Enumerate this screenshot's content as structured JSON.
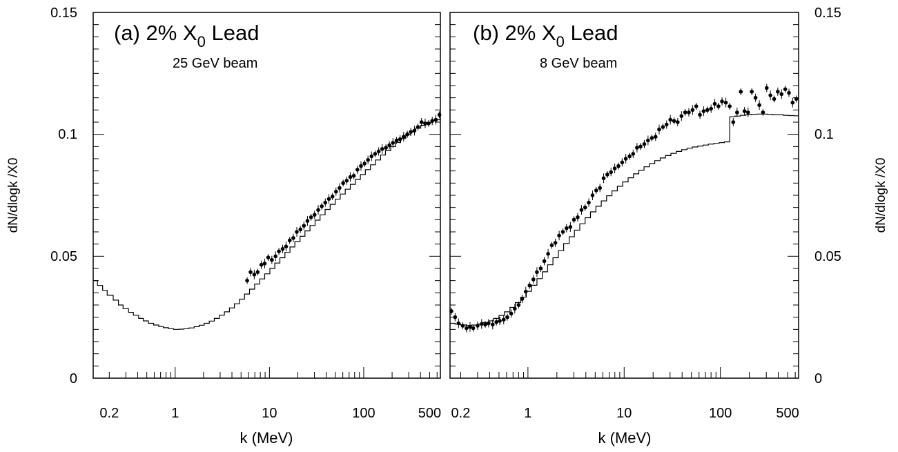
{
  "chart_data": [
    {
      "type": "scatter",
      "title": "(a) 2% X",
      "title_sub": "0",
      "title_suffix": " Lead",
      "subtitle": "25 GeV beam",
      "xlabel": "k (MeV)",
      "ylabel": "",
      "xscale": "log",
      "xlim": [
        0.135,
        650
      ],
      "ylim": [
        0,
        0.15
      ],
      "x_tick_labels": [
        "0.2",
        "1",
        "10",
        "100",
        "500"
      ],
      "y_tick_labels": [
        "0",
        "0.05",
        "0.1",
        "0.15"
      ],
      "series": [
        {
          "kind": "histogram",
          "x": [
            0.135,
            0.15,
            0.17,
            0.19,
            0.22,
            0.25,
            0.28,
            0.32,
            0.36,
            0.41,
            0.46,
            0.52,
            0.59,
            0.67,
            0.75,
            0.85,
            0.96,
            1.1,
            1.24,
            1.4,
            1.59,
            1.8,
            2.03,
            2.3,
            2.6,
            2.94,
            3.33,
            3.76,
            4.25,
            4.81,
            5.44,
            6.15,
            6.96,
            7.87,
            8.9,
            10.1,
            11.4,
            12.9,
            14.6,
            16.5,
            18.6,
            21.1,
            23.8,
            26.9,
            30.5,
            34.4,
            38.9,
            44,
            49.8,
            56.3,
            63.7,
            72,
            81.4,
            92.1,
            104,
            118,
            133,
            151,
            170,
            193,
            218,
            246,
            279,
            315,
            356,
            403,
            456,
            515,
            583,
            650
          ],
          "y": [
            0.04,
            0.038,
            0.036,
            0.034,
            0.032,
            0.03,
            0.0285,
            0.027,
            0.0258,
            0.0245,
            0.0235,
            0.0225,
            0.0218,
            0.0212,
            0.0207,
            0.0203,
            0.02,
            0.0201,
            0.0203,
            0.0206,
            0.0211,
            0.0217,
            0.0225,
            0.0234,
            0.0245,
            0.0258,
            0.0272,
            0.0288,
            0.0305,
            0.0324,
            0.0345,
            0.0365,
            0.0386,
            0.0407,
            0.0428,
            0.045,
            0.0472,
            0.0494,
            0.0516,
            0.0538,
            0.056,
            0.0582,
            0.0604,
            0.0626,
            0.0648,
            0.067,
            0.0692,
            0.0713,
            0.0734,
            0.0755,
            0.0775,
            0.0795,
            0.0815,
            0.0835,
            0.0855,
            0.0875,
            0.0895,
            0.0915,
            0.0933,
            0.095,
            0.0967,
            0.0983,
            0.0998,
            0.1012,
            0.1025,
            0.1037,
            0.1047,
            0.1055,
            0.106,
            0.1065
          ]
        },
        {
          "kind": "points",
          "x": [
            5.8,
            6.3,
            6.9,
            7.5,
            8.2,
            8.9,
            9.7,
            10.6,
            11.6,
            12.6,
            13.8,
            15.0,
            16.4,
            17.9,
            19.5,
            21.3,
            23.2,
            25.3,
            27.6,
            30.1,
            32.9,
            35.9,
            39.1,
            42.7,
            46.6,
            50.8,
            55.4,
            60.5,
            66.0,
            72.0,
            78.5,
            85.7,
            93.5,
            102,
            111,
            121,
            132,
            144,
            157,
            172,
            187,
            204,
            223,
            243,
            265,
            290,
            316,
            345,
            376,
            410,
            448,
            488,
            533,
            582,
            635
          ],
          "y": [
            0.04,
            0.0435,
            0.0425,
            0.0435,
            0.0465,
            0.047,
            0.0495,
            0.0485,
            0.05,
            0.052,
            0.053,
            0.054,
            0.0565,
            0.0575,
            0.06,
            0.061,
            0.0625,
            0.0645,
            0.066,
            0.067,
            0.069,
            0.0705,
            0.072,
            0.0735,
            0.0745,
            0.0765,
            0.078,
            0.08,
            0.081,
            0.0825,
            0.083,
            0.0855,
            0.087,
            0.088,
            0.0895,
            0.091,
            0.092,
            0.093,
            0.094,
            0.0945,
            0.0955,
            0.0965,
            0.0975,
            0.098,
            0.099,
            0.1,
            0.101,
            0.1015,
            0.103,
            0.105,
            0.1045,
            0.1045,
            0.1055,
            0.106,
            0.108
          ]
        }
      ]
    },
    {
      "type": "scatter",
      "title": "(b) 2% X",
      "title_sub": "0",
      "title_suffix": " Lead",
      "subtitle": "8 GeV beam",
      "xlabel": "k (MeV)",
      "ylabel": "dN/dlogk /X0",
      "xscale": "log",
      "xlim": [
        0.155,
        650
      ],
      "ylim": [
        0,
        0.15
      ],
      "x_tick_labels": [
        "0.2",
        "1",
        "10",
        "100",
        "500"
      ],
      "y_tick_labels": [
        "0",
        "0.05",
        "0.1",
        "0.15"
      ],
      "series": [
        {
          "kind": "histogram",
          "x": [
            0.155,
            0.175,
            0.2,
            0.23,
            0.26,
            0.3,
            0.34,
            0.39,
            0.44,
            0.5,
            0.57,
            0.65,
            0.74,
            0.84,
            0.96,
            1.09,
            1.24,
            1.41,
            1.6,
            1.82,
            2.07,
            2.35,
            2.68,
            3.04,
            3.46,
            3.93,
            4.47,
            5.08,
            5.78,
            6.57,
            7.47,
            8.49,
            9.65,
            11,
            12.5,
            14.2,
            16.1,
            18.3,
            20.8,
            23.7,
            26.9,
            30.6,
            34.8,
            39.6,
            45,
            51.1,
            58.1,
            66.1,
            75.1,
            85.4,
            97.1,
            110,
            125,
            142,
            162,
            184,
            209,
            238,
            270,
            307,
            349,
            397,
            451,
            513,
            583,
            650
          ],
          "y": [
            0.0225,
            0.0222,
            0.0218,
            0.0216,
            0.0218,
            0.0222,
            0.0228,
            0.0235,
            0.0245,
            0.0257,
            0.0272,
            0.029,
            0.031,
            0.0332,
            0.0356,
            0.0381,
            0.0408,
            0.0436,
            0.0465,
            0.0494,
            0.0523,
            0.0552,
            0.058,
            0.0607,
            0.0633,
            0.0658,
            0.0682,
            0.0705,
            0.0727,
            0.0748,
            0.0768,
            0.0787,
            0.0805,
            0.0822,
            0.0838,
            0.0853,
            0.0867,
            0.088,
            0.0892,
            0.0903,
            0.0913,
            0.0922,
            0.093,
            0.0937,
            0.0943,
            0.0948,
            0.0952,
            0.0956,
            0.096,
            0.0963,
            0.0966,
            0.0969,
            0.1072,
            0.1075,
            0.1078,
            0.108,
            0.1082,
            0.1083,
            0.1083,
            0.1082,
            0.108,
            0.108,
            0.1078,
            0.1077,
            0.1076,
            0.1075
          ]
        },
        {
          "kind": "points",
          "x": [
            0.16,
            0.175,
            0.19,
            0.21,
            0.23,
            0.25,
            0.27,
            0.3,
            0.33,
            0.36,
            0.39,
            0.43,
            0.47,
            0.51,
            0.56,
            0.61,
            0.67,
            0.73,
            0.8,
            0.87,
            0.95,
            1.04,
            1.14,
            1.24,
            1.36,
            1.48,
            1.62,
            1.77,
            1.93,
            2.11,
            2.31,
            2.52,
            2.76,
            3.01,
            3.29,
            3.6,
            3.93,
            4.29,
            4.69,
            5.12,
            5.6,
            6.12,
            6.68,
            7.3,
            7.98,
            8.72,
            9.53,
            10.4,
            11.4,
            12.4,
            13.6,
            14.8,
            16.2,
            17.7,
            19.4,
            21.2,
            23.1,
            25.3,
            27.6,
            30.2,
            33,
            36,
            39.4,
            43,
            47,
            51.4,
            56.1,
            61.3,
            67,
            73.2,
            80,
            87.4,
            95.5,
            104,
            114,
            125,
            136,
            149,
            163,
            178,
            194,
            212,
            232,
            254,
            277,
            303,
            331,
            362,
            395,
            432,
            472,
            516,
            563,
            615
          ],
          "y": [
            0.0275,
            0.025,
            0.0225,
            0.0215,
            0.0205,
            0.021,
            0.0205,
            0.0215,
            0.0222,
            0.022,
            0.0225,
            0.022,
            0.023,
            0.0235,
            0.024,
            0.025,
            0.0265,
            0.0285,
            0.03,
            0.0325,
            0.0355,
            0.038,
            0.0405,
            0.0435,
            0.045,
            0.048,
            0.051,
            0.0545,
            0.0555,
            0.0585,
            0.06,
            0.0615,
            0.062,
            0.065,
            0.066,
            0.069,
            0.07,
            0.072,
            0.075,
            0.077,
            0.078,
            0.082,
            0.0835,
            0.0845,
            0.086,
            0.087,
            0.0885,
            0.09,
            0.091,
            0.092,
            0.0945,
            0.095,
            0.096,
            0.0975,
            0.0985,
            0.099,
            0.102,
            0.103,
            0.104,
            0.106,
            0.1055,
            0.105,
            0.1075,
            0.109,
            0.109,
            0.11,
            0.1115,
            0.108,
            0.1095,
            0.11,
            0.1105,
            0.1125,
            0.1115,
            0.1135,
            0.113,
            0.1115,
            0.105,
            0.109,
            0.1175,
            0.1095,
            0.109,
            0.1175,
            0.115,
            0.112,
            0.109,
            0.119,
            0.116,
            0.1145,
            0.1175,
            0.1165,
            0.1185,
            0.117,
            0.113,
            0.1145
          ]
        }
      ]
    }
  ]
}
